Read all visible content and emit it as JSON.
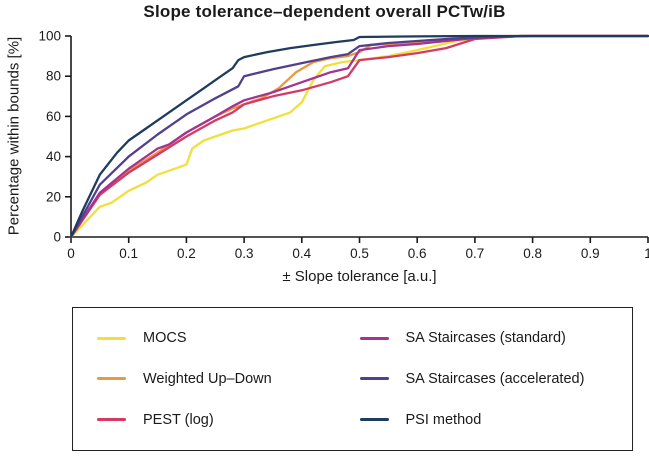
{
  "chart_data": {
    "type": "line",
    "title": "Slope tolerance–dependent overall PCTw/iB",
    "xlabel": "± Slope tolerance [a.u.]",
    "ylabel": "Percentage within bounds [%]",
    "xlim": [
      0,
      1
    ],
    "ylim": [
      0,
      100
    ],
    "x_ticks": [
      0,
      0.1,
      0.2,
      0.3,
      0.4,
      0.5,
      0.6,
      0.7,
      0.8,
      0.9,
      1
    ],
    "x_tick_labels": [
      "0",
      "0.1",
      "0.2",
      "0.3",
      "0.4",
      "0.5",
      "0.6",
      "0.7",
      "0.8",
      "0.9",
      "1"
    ],
    "y_ticks": [
      0,
      20,
      40,
      60,
      80,
      100
    ],
    "y_tick_labels": [
      "0",
      "20",
      "40",
      "60",
      "80",
      "100"
    ],
    "grid": false,
    "legend_position": "bottom-box-two-columns",
    "axis_color": "#1a1a1a",
    "series": [
      {
        "id": "mocs",
        "name": "MOCS",
        "color": "#F1DF3B",
        "points": [
          [
            0,
            0
          ],
          [
            0.03,
            9
          ],
          [
            0.05,
            15
          ],
          [
            0.07,
            17
          ],
          [
            0.1,
            23
          ],
          [
            0.13,
            27
          ],
          [
            0.15,
            31
          ],
          [
            0.18,
            34
          ],
          [
            0.2,
            36
          ],
          [
            0.21,
            44
          ],
          [
            0.23,
            48
          ],
          [
            0.25,
            50
          ],
          [
            0.28,
            53
          ],
          [
            0.3,
            54
          ],
          [
            0.33,
            57
          ],
          [
            0.36,
            60
          ],
          [
            0.38,
            62
          ],
          [
            0.4,
            67
          ],
          [
            0.42,
            78
          ],
          [
            0.44,
            85
          ],
          [
            0.47,
            87
          ],
          [
            0.5,
            88
          ],
          [
            0.55,
            90
          ],
          [
            0.6,
            93
          ],
          [
            0.63,
            95
          ],
          [
            0.66,
            97
          ],
          [
            0.7,
            99
          ],
          [
            0.76,
            100
          ],
          [
            1.0,
            100
          ]
        ]
      },
      {
        "id": "weighted-up-down",
        "name": "Weighted Up–Down",
        "color": "#E9993D",
        "points": [
          [
            0,
            0
          ],
          [
            0.05,
            21
          ],
          [
            0.1,
            33
          ],
          [
            0.15,
            42
          ],
          [
            0.2,
            52
          ],
          [
            0.25,
            60
          ],
          [
            0.28,
            64
          ],
          [
            0.3,
            66
          ],
          [
            0.33,
            69
          ],
          [
            0.36,
            74
          ],
          [
            0.39,
            82
          ],
          [
            0.42,
            87
          ],
          [
            0.45,
            89
          ],
          [
            0.48,
            90
          ],
          [
            0.5,
            92
          ],
          [
            0.52,
            95.5
          ],
          [
            0.6,
            97
          ],
          [
            0.65,
            98
          ],
          [
            0.7,
            99.3
          ],
          [
            0.78,
            100
          ],
          [
            1.0,
            100
          ]
        ]
      },
      {
        "id": "pest-log",
        "name": "PEST (log)",
        "color": "#D43A64",
        "points": [
          [
            0,
            0
          ],
          [
            0.05,
            21
          ],
          [
            0.1,
            32
          ],
          [
            0.15,
            41
          ],
          [
            0.2,
            50
          ],
          [
            0.25,
            58
          ],
          [
            0.28,
            62
          ],
          [
            0.3,
            66
          ],
          [
            0.35,
            70
          ],
          [
            0.4,
            73
          ],
          [
            0.45,
            77
          ],
          [
            0.48,
            80
          ],
          [
            0.5,
            88
          ],
          [
            0.55,
            89.5
          ],
          [
            0.6,
            91.5
          ],
          [
            0.65,
            94
          ],
          [
            0.7,
            98.5
          ],
          [
            0.78,
            100
          ],
          [
            1.0,
            100
          ]
        ]
      },
      {
        "id": "sa-staircases-standard",
        "name": "SA Staircases (standard)",
        "color": "#A43391",
        "points": [
          [
            0,
            0
          ],
          [
            0.05,
            22
          ],
          [
            0.1,
            34
          ],
          [
            0.15,
            44
          ],
          [
            0.17,
            46
          ],
          [
            0.2,
            52
          ],
          [
            0.25,
            60
          ],
          [
            0.28,
            65
          ],
          [
            0.3,
            68
          ],
          [
            0.35,
            72
          ],
          [
            0.4,
            77
          ],
          [
            0.45,
            82
          ],
          [
            0.48,
            84
          ],
          [
            0.5,
            93
          ],
          [
            0.55,
            95
          ],
          [
            0.6,
            96
          ],
          [
            0.65,
            97.5
          ],
          [
            0.7,
            99
          ],
          [
            0.78,
            100
          ],
          [
            1.0,
            100
          ]
        ]
      },
      {
        "id": "sa-staircases-accelerated",
        "name": "SA Staircases (accelerated)",
        "color": "#53408C",
        "points": [
          [
            0,
            0
          ],
          [
            0.05,
            26
          ],
          [
            0.1,
            40
          ],
          [
            0.15,
            51
          ],
          [
            0.2,
            61
          ],
          [
            0.25,
            69
          ],
          [
            0.29,
            75
          ],
          [
            0.3,
            80
          ],
          [
            0.35,
            83.5
          ],
          [
            0.4,
            86.5
          ],
          [
            0.45,
            89.5
          ],
          [
            0.48,
            91
          ],
          [
            0.5,
            95
          ],
          [
            0.55,
            96.5
          ],
          [
            0.6,
            97.5
          ],
          [
            0.65,
            98.5
          ],
          [
            0.7,
            99.3
          ],
          [
            0.8,
            100
          ],
          [
            1.0,
            100
          ]
        ]
      },
      {
        "id": "psi-method",
        "name": "PSI method",
        "color": "#1E3C5F",
        "points": [
          [
            0,
            0
          ],
          [
            0.02,
            13
          ],
          [
            0.05,
            31
          ],
          [
            0.08,
            42
          ],
          [
            0.1,
            48
          ],
          [
            0.13,
            54
          ],
          [
            0.16,
            60
          ],
          [
            0.2,
            68
          ],
          [
            0.23,
            74
          ],
          [
            0.26,
            80
          ],
          [
            0.28,
            84
          ],
          [
            0.29,
            88
          ],
          [
            0.3,
            89.5
          ],
          [
            0.34,
            92
          ],
          [
            0.38,
            94
          ],
          [
            0.42,
            95.5
          ],
          [
            0.46,
            97
          ],
          [
            0.49,
            98
          ],
          [
            0.5,
            99.5
          ],
          [
            0.6,
            99.8
          ],
          [
            0.7,
            100
          ],
          [
            1.0,
            100
          ]
        ]
      }
    ]
  }
}
